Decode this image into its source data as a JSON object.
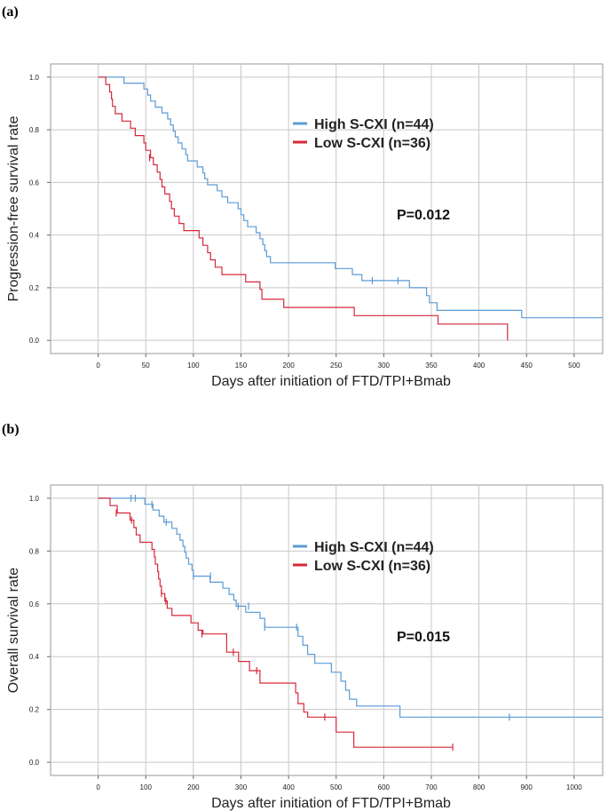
{
  "chart_data": [
    {
      "panel_label": "(a)",
      "type": "line",
      "xlabel": "Days after initiation of FTD/TPI+Bmab",
      "ylabel": "Progression-free survival rate",
      "xlim": [
        -50,
        530
      ],
      "ylim": [
        -0.05,
        1.05
      ],
      "xticks": [
        "0",
        "50",
        "100",
        "150",
        "200",
        "250",
        "300",
        "350",
        "400",
        "450",
        "500"
      ],
      "yticks": [
        "0.0",
        "0.2",
        "0.4",
        "0.6",
        "0.8",
        "1.0"
      ],
      "grid": true,
      "legend_position": "top-right",
      "annotation": "P=0.012",
      "series": [
        {
          "name": "High S-CXI (n=44)",
          "color": "#5b9bd5",
          "steps": [
            [
              0,
              1.0
            ],
            [
              27,
              0.977
            ],
            [
              48,
              0.955
            ],
            [
              52,
              0.932
            ],
            [
              55,
              0.909
            ],
            [
              60,
              0.886
            ],
            [
              67,
              0.864
            ],
            [
              73,
              0.841
            ],
            [
              76,
              0.818
            ],
            [
              79,
              0.795
            ],
            [
              81,
              0.773
            ],
            [
              84,
              0.75
            ],
            [
              88,
              0.727
            ],
            [
              92,
              0.705
            ],
            [
              94,
              0.682
            ],
            [
              104,
              0.659
            ],
            [
              110,
              0.636
            ],
            [
              112,
              0.614
            ],
            [
              115,
              0.591
            ],
            [
              125,
              0.568
            ],
            [
              130,
              0.545
            ],
            [
              136,
              0.523
            ],
            [
              147,
              0.5
            ],
            [
              150,
              0.477
            ],
            [
              153,
              0.455
            ],
            [
              157,
              0.432
            ],
            [
              166,
              0.409
            ],
            [
              170,
              0.386
            ],
            [
              173,
              0.364
            ],
            [
              175,
              0.341
            ],
            [
              177,
              0.318
            ],
            [
              181,
              0.295
            ],
            [
              249,
              0.273
            ],
            [
              267,
              0.25
            ],
            [
              277,
              0.227
            ],
            [
              327,
              0.2
            ],
            [
              345,
              0.17
            ],
            [
              348,
              0.143
            ],
            [
              356,
              0.114
            ],
            [
              445,
              0.086
            ]
          ],
          "end": 530,
          "censored": [
            [
              288,
              0.227
            ],
            [
              315,
              0.227
            ]
          ]
        },
        {
          "name": "Low S-CXI (n=36)",
          "color": "#d6283a",
          "steps": [
            [
              0,
              1.0
            ],
            [
              8,
              0.972
            ],
            [
              12,
              0.944
            ],
            [
              14,
              0.917
            ],
            [
              15,
              0.889
            ],
            [
              18,
              0.861
            ],
            [
              25,
              0.833
            ],
            [
              34,
              0.806
            ],
            [
              39,
              0.778
            ],
            [
              48,
              0.75
            ],
            [
              50,
              0.722
            ],
            [
              55,
              0.694
            ],
            [
              58,
              0.667
            ],
            [
              62,
              0.639
            ],
            [
              65,
              0.611
            ],
            [
              67,
              0.583
            ],
            [
              70,
              0.556
            ],
            [
              75,
              0.528
            ],
            [
              77,
              0.5
            ],
            [
              80,
              0.472
            ],
            [
              85,
              0.444
            ],
            [
              90,
              0.417
            ],
            [
              106,
              0.389
            ],
            [
              110,
              0.361
            ],
            [
              115,
              0.333
            ],
            [
              118,
              0.306
            ],
            [
              123,
              0.278
            ],
            [
              130,
              0.25
            ],
            [
              155,
              0.222
            ],
            [
              170,
              0.194
            ],
            [
              172,
              0.156
            ],
            [
              195,
              0.125
            ],
            [
              269,
              0.094
            ],
            [
              357,
              0.062
            ],
            [
              430,
              0.0
            ]
          ],
          "end": 430,
          "censored": [
            [
              54,
              0.694
            ]
          ]
        }
      ]
    },
    {
      "panel_label": "(b)",
      "type": "line",
      "xlabel": "Days after initiation of FTD/TPI+Bmab",
      "ylabel": "Overall survival rate",
      "xlim": [
        -100,
        1060
      ],
      "ylim": [
        -0.05,
        1.05
      ],
      "xticks": [
        "0",
        "100",
        "200",
        "300",
        "400",
        "500",
        "600",
        "700",
        "800",
        "900",
        "1000"
      ],
      "yticks": [
        "0.0",
        "0.2",
        "0.4",
        "0.6",
        "0.8",
        "1.0"
      ],
      "grid": true,
      "legend_position": "top-right",
      "annotation": "P=0.015",
      "series": [
        {
          "name": "High S-CXI (n=44)",
          "color": "#5b9bd5",
          "steps": [
            [
              0,
              1.0
            ],
            [
              98,
              0.977
            ],
            [
              115,
              0.955
            ],
            [
              128,
              0.932
            ],
            [
              138,
              0.909
            ],
            [
              155,
              0.886
            ],
            [
              165,
              0.864
            ],
            [
              172,
              0.841
            ],
            [
              178,
              0.818
            ],
            [
              182,
              0.795
            ],
            [
              185,
              0.773
            ],
            [
              190,
              0.75
            ],
            [
              197,
              0.727
            ],
            [
              200,
              0.705
            ],
            [
              235,
              0.682
            ],
            [
              262,
              0.659
            ],
            [
              275,
              0.636
            ],
            [
              285,
              0.614
            ],
            [
              290,
              0.591
            ],
            [
              310,
              0.568
            ],
            [
              340,
              0.545
            ],
            [
              350,
              0.511
            ],
            [
              420,
              0.477
            ],
            [
              430,
              0.443
            ],
            [
              440,
              0.409
            ],
            [
              455,
              0.375
            ],
            [
              490,
              0.341
            ],
            [
              510,
              0.307
            ],
            [
              520,
              0.273
            ],
            [
              528,
              0.239
            ],
            [
              543,
              0.213
            ],
            [
              634,
              0.171
            ]
          ],
          "end": 1060,
          "censored": [
            [
              69,
              1.0
            ],
            [
              78,
              1.0
            ],
            [
              113,
              0.977
            ],
            [
              143,
              0.909
            ],
            [
              200,
              0.705
            ],
            [
              236,
              0.705
            ],
            [
              294,
              0.591
            ],
            [
              316,
              0.591
            ],
            [
              350,
              0.511
            ],
            [
              417,
              0.511
            ],
            [
              864,
              0.171
            ]
          ]
        },
        {
          "name": "Low S-CXI (n=36)",
          "color": "#d6283a",
          "steps": [
            [
              0,
              1.0
            ],
            [
              25,
              0.972
            ],
            [
              40,
              0.944
            ],
            [
              67,
              0.917
            ],
            [
              75,
              0.889
            ],
            [
              80,
              0.861
            ],
            [
              88,
              0.833
            ],
            [
              113,
              0.806
            ],
            [
              118,
              0.778
            ],
            [
              120,
              0.75
            ],
            [
              125,
              0.722
            ],
            [
              127,
              0.694
            ],
            [
              130,
              0.667
            ],
            [
              133,
              0.639
            ],
            [
              140,
              0.611
            ],
            [
              145,
              0.583
            ],
            [
              155,
              0.556
            ],
            [
              195,
              0.528
            ],
            [
              210,
              0.5
            ],
            [
              220,
              0.486
            ],
            [
              270,
              0.417
            ],
            [
              295,
              0.382
            ],
            [
              318,
              0.347
            ],
            [
              340,
              0.3
            ],
            [
              415,
              0.263
            ],
            [
              420,
              0.222
            ],
            [
              432,
              0.19
            ],
            [
              440,
              0.171
            ],
            [
              500,
              0.114
            ],
            [
              537,
              0.057
            ]
          ],
          "end": 745,
          "censored": [
            [
              38,
              0.944
            ],
            [
              70,
              0.917
            ],
            [
              133,
              0.639
            ],
            [
              142,
              0.611
            ],
            [
              218,
              0.486
            ],
            [
              284,
              0.417
            ],
            [
              333,
              0.347
            ],
            [
              476,
              0.171
            ],
            [
              745,
              0.057
            ]
          ]
        }
      ]
    }
  ]
}
